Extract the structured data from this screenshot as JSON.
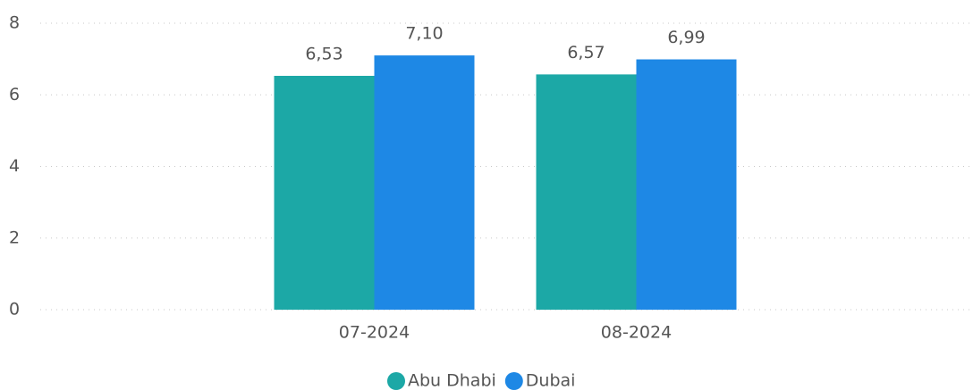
{
  "chart_data": {
    "type": "bar",
    "categories": [
      "07-2024",
      "08-2024"
    ],
    "series": [
      {
        "name": "Abu Dhabi",
        "color": "#1ca8a6",
        "values": [
          6.53,
          6.57
        ],
        "value_labels": [
          "6,53",
          "6,57"
        ]
      },
      {
        "name": "Dubai",
        "color": "#1e88e5",
        "values": [
          7.1,
          6.99
        ],
        "value_labels": [
          "7,10",
          "6,99"
        ]
      }
    ],
    "ylim": [
      0,
      8
    ],
    "yticks": [
      0,
      2,
      4,
      6,
      8
    ],
    "grid": true,
    "legend": "bottom"
  }
}
